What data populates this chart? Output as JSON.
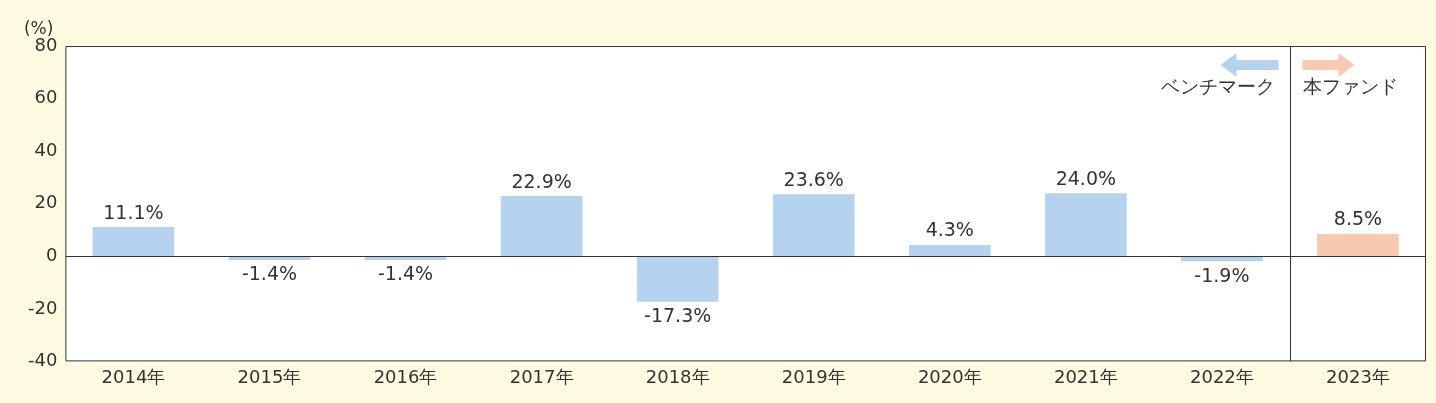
{
  "chart_data": {
    "type": "bar",
    "ylabel": "(%)",
    "categories": [
      "2014年",
      "2015年",
      "2016年",
      "2017年",
      "2018年",
      "2019年",
      "2020年",
      "2021年",
      "2022年",
      "2023年"
    ],
    "series": [
      {
        "name": "ベンチマーク",
        "color": "#b5d3ee",
        "values": [
          11.1,
          -1.4,
          -1.4,
          22.9,
          -17.3,
          23.6,
          4.3,
          24.0,
          -1.9,
          null
        ],
        "value_labels": [
          "11.1%",
          "-1.4%",
          "-1.4%",
          "22.9%",
          "-17.3%",
          "23.6%",
          "4.3%",
          "24.0%",
          "-1.9%",
          null
        ]
      },
      {
        "name": "本ファンド",
        "color": "#f8c8b0",
        "values": [
          null,
          null,
          null,
          null,
          null,
          null,
          null,
          null,
          null,
          8.5
        ],
        "value_labels": [
          null,
          null,
          null,
          null,
          null,
          null,
          null,
          null,
          null,
          "8.5%"
        ]
      }
    ],
    "ylim": [
      -40,
      80
    ],
    "yticks": [
      -40,
      -20,
      0,
      20,
      40,
      60,
      80
    ],
    "ref_lines": [
      {
        "axis": "y",
        "value": 0,
        "color": "#333333"
      }
    ],
    "grid": false,
    "legend": "top right"
  }
}
